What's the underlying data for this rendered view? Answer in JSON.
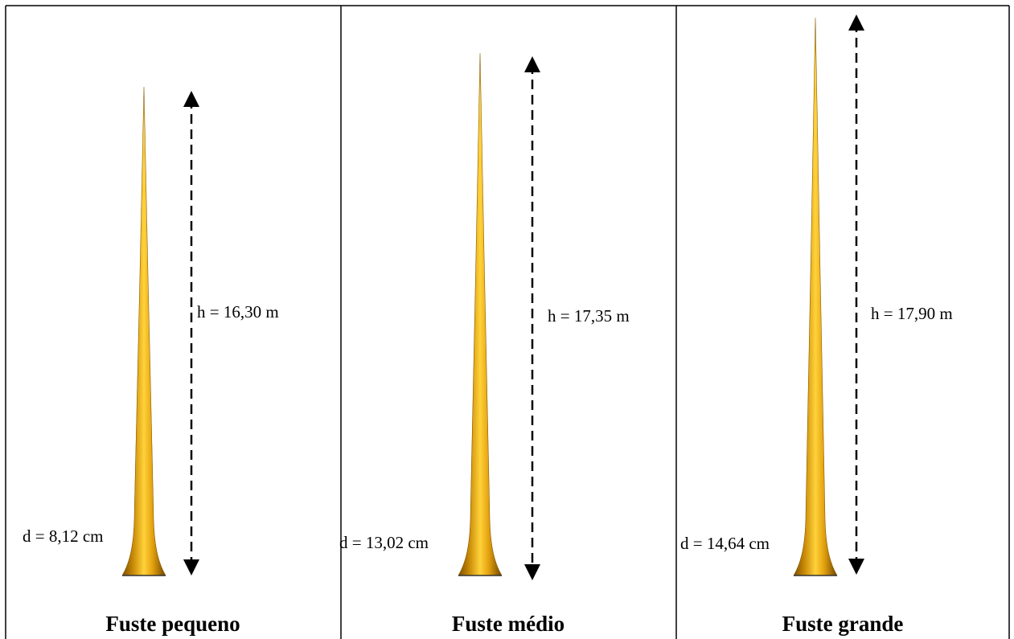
{
  "panels": [
    {
      "height_label": "h = 16,30 m",
      "diameter_label": "d = 8,12 cm",
      "caption": "Fuste pequeno"
    },
    {
      "height_label": "h = 17,35 m",
      "diameter_label": "d = 13,02 cm",
      "caption": "Fuste médio"
    },
    {
      "height_label": "h = 17,90 m",
      "diameter_label": "d = 14,64 cm",
      "caption": "Fuste grande"
    }
  ]
}
